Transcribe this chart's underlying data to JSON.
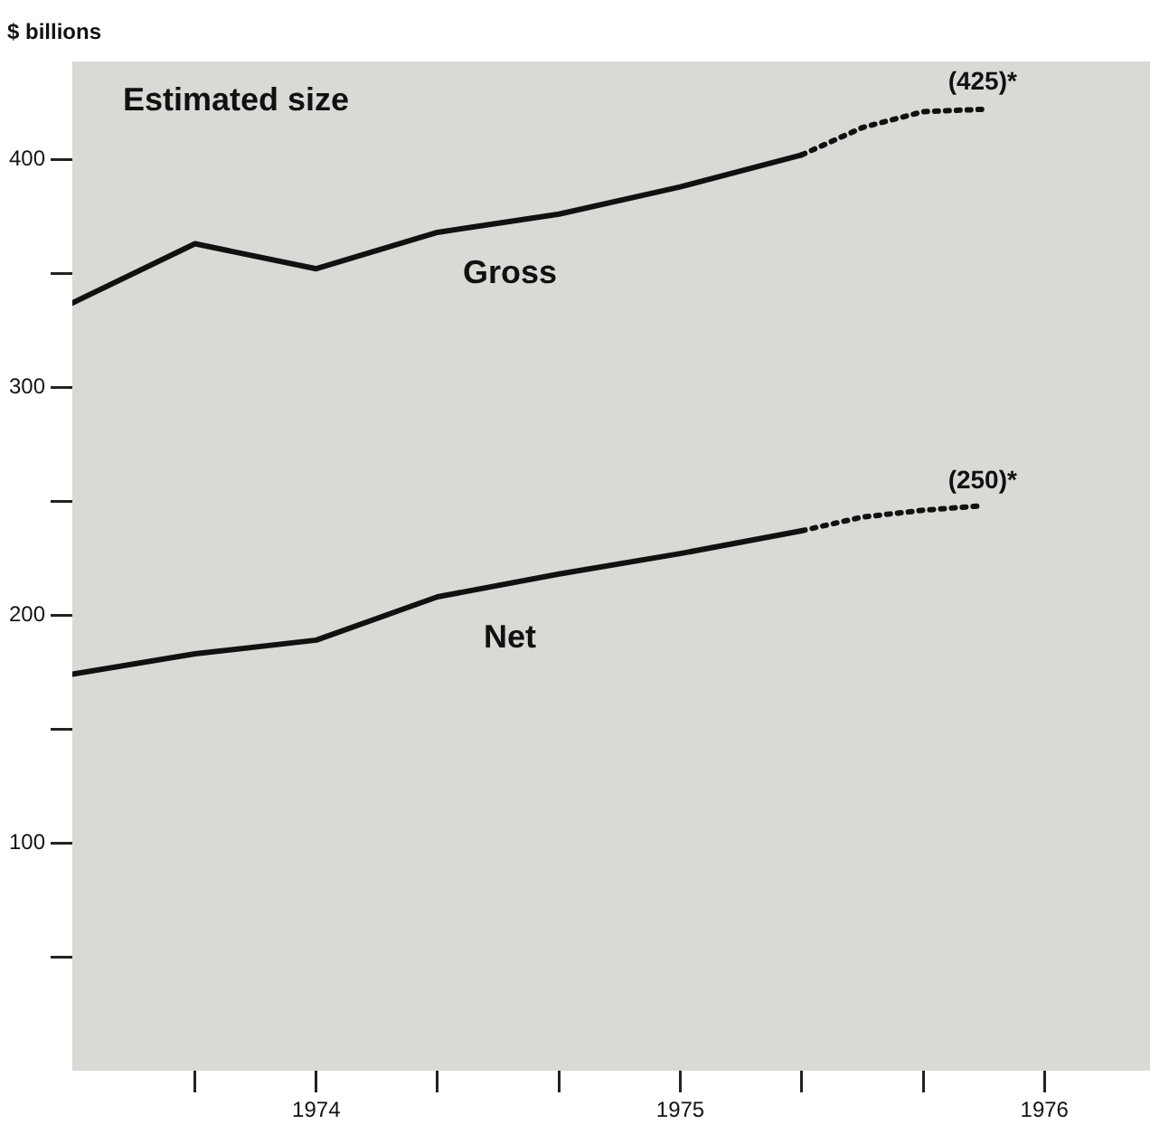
{
  "chart_data": {
    "type": "line",
    "ylabel": "$ billions",
    "annotations": [
      "Estimated size",
      {
        "text": "(425)*",
        "x": 1975.83,
        "y": 425
      },
      {
        "text": "(250)*",
        "x": 1975.83,
        "y": 250
      }
    ],
    "xlim": [
      1973.33,
      1976.29
    ],
    "xticks": [
      {
        "value": 1973.667,
        "label": null
      },
      {
        "value": 1974,
        "label": "1974"
      },
      {
        "value": 1974.333,
        "label": null
      },
      {
        "value": 1974.667,
        "label": null
      },
      {
        "value": 1975,
        "label": "1975"
      },
      {
        "value": 1975.333,
        "label": null
      },
      {
        "value": 1975.667,
        "label": null
      },
      {
        "value": 1976,
        "label": "1976"
      }
    ],
    "ylim": [
      0,
      443
    ],
    "yticks": [
      {
        "value": 50,
        "label": null
      },
      100,
      {
        "value": 150,
        "label": null
      },
      200,
      {
        "value": 250,
        "label": null
      },
      300,
      {
        "value": 350,
        "label": null
      },
      400
    ],
    "grid": false,
    "legend": false,
    "marker": "none",
    "series": [
      {
        "name": "Gross",
        "color": "#111111",
        "x": [
          1973.33,
          1973.667,
          1974,
          1974.333,
          1974.667,
          1975,
          1975.333
        ],
        "values": [
          337,
          363,
          352,
          368,
          376,
          388,
          402
        ]
      },
      {
        "color": "#111111",
        "line_style": "dotted",
        "x": [
          1975.333,
          1975.5,
          1975.667,
          1975.83
        ],
        "values": [
          402,
          414,
          421,
          422
        ]
      },
      {
        "name": "Net",
        "color": "#111111",
        "x": [
          1973.33,
          1973.667,
          1974,
          1974.333,
          1974.667,
          1975,
          1975.333
        ],
        "values": [
          174,
          183,
          189,
          208,
          218,
          227,
          237
        ]
      },
      {
        "color": "#111111",
        "line_style": "dotted",
        "x": [
          1975.333,
          1975.5,
          1975.667,
          1975.83
        ],
        "values": [
          237,
          243,
          246,
          248
        ]
      }
    ]
  }
}
